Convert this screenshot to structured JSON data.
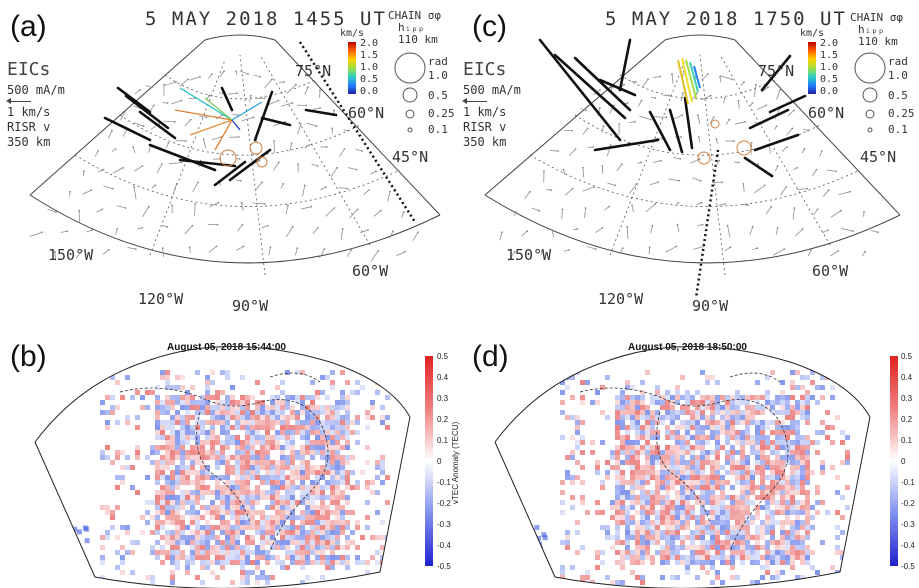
{
  "panel_a": {
    "label": "(a)",
    "title": "5 MAY 2018 1455 UT",
    "eics": "EICs",
    "current_scale": "500 mA/m",
    "velocity_scale": "1 km/s",
    "risr_label": "RISR v",
    "risr_alt": "350 km",
    "colorbar_unit": "km/s",
    "colorbar_ticks": [
      "2.0",
      "1.5",
      "1.0",
      "0.5",
      "0.0"
    ],
    "chain_title": "CHAIN σφ",
    "chain_hipp": "hᵢₚₚ",
    "chain_alt": "110 km",
    "chain_rad": "rad",
    "chain_sizes": [
      "1.0",
      "0.5",
      "0.25",
      "0.1"
    ],
    "lat_labels": [
      "75°N",
      "60°N",
      "45°N"
    ],
    "lon_labels": [
      "150°W",
      "120°W",
      "90°W",
      "60°W"
    ]
  },
  "panel_c": {
    "label": "(c)",
    "title": "5 MAY 2018 1750 UT",
    "eics": "EICs",
    "current_scale": "500 mA/m",
    "velocity_scale": "1 km/s",
    "risr_label": "RISR v",
    "risr_alt": "350 km",
    "colorbar_unit": "km/s",
    "colorbar_ticks": [
      "2.0",
      "1.5",
      "1.0",
      "0.5",
      "0.0"
    ],
    "chain_title": "CHAIN σφ",
    "chain_hipp": "hᵢₚₚ",
    "chain_alt": "110 km",
    "chain_rad": "rad",
    "chain_sizes": [
      "1.0",
      "0.5",
      "0.25",
      "0.1"
    ],
    "lat_labels": [
      "75°N",
      "60°N",
      "45°N"
    ],
    "lon_labels": [
      "150°W",
      "120°W",
      "90°W",
      "60°W"
    ]
  },
  "panel_b": {
    "label": "(b)",
    "title": "August 05, 2018 15:44:00",
    "colorbar_title": "vTEC Anomaly (TECU)",
    "colorbar_ticks": [
      "0.5",
      "0.4",
      "0.3",
      "0.2",
      "0.1",
      "0",
      "-0.1",
      "-0.2",
      "-0.3",
      "-0.4",
      "-0.5"
    ]
  },
  "panel_d": {
    "label": "(d)",
    "title": "August 05, 2018 18:50:00",
    "colorbar_ticks": [
      "0.5",
      "0.4",
      "0.3",
      "0.2",
      "0.1",
      "0",
      "-0.1",
      "-0.2",
      "-0.3",
      "-0.4",
      "-0.5"
    ]
  },
  "colors": {
    "anomaly_positive": "#e03030",
    "anomaly_negative": "#3050e0",
    "eic_vector": "#111111",
    "grid": "#555555"
  }
}
